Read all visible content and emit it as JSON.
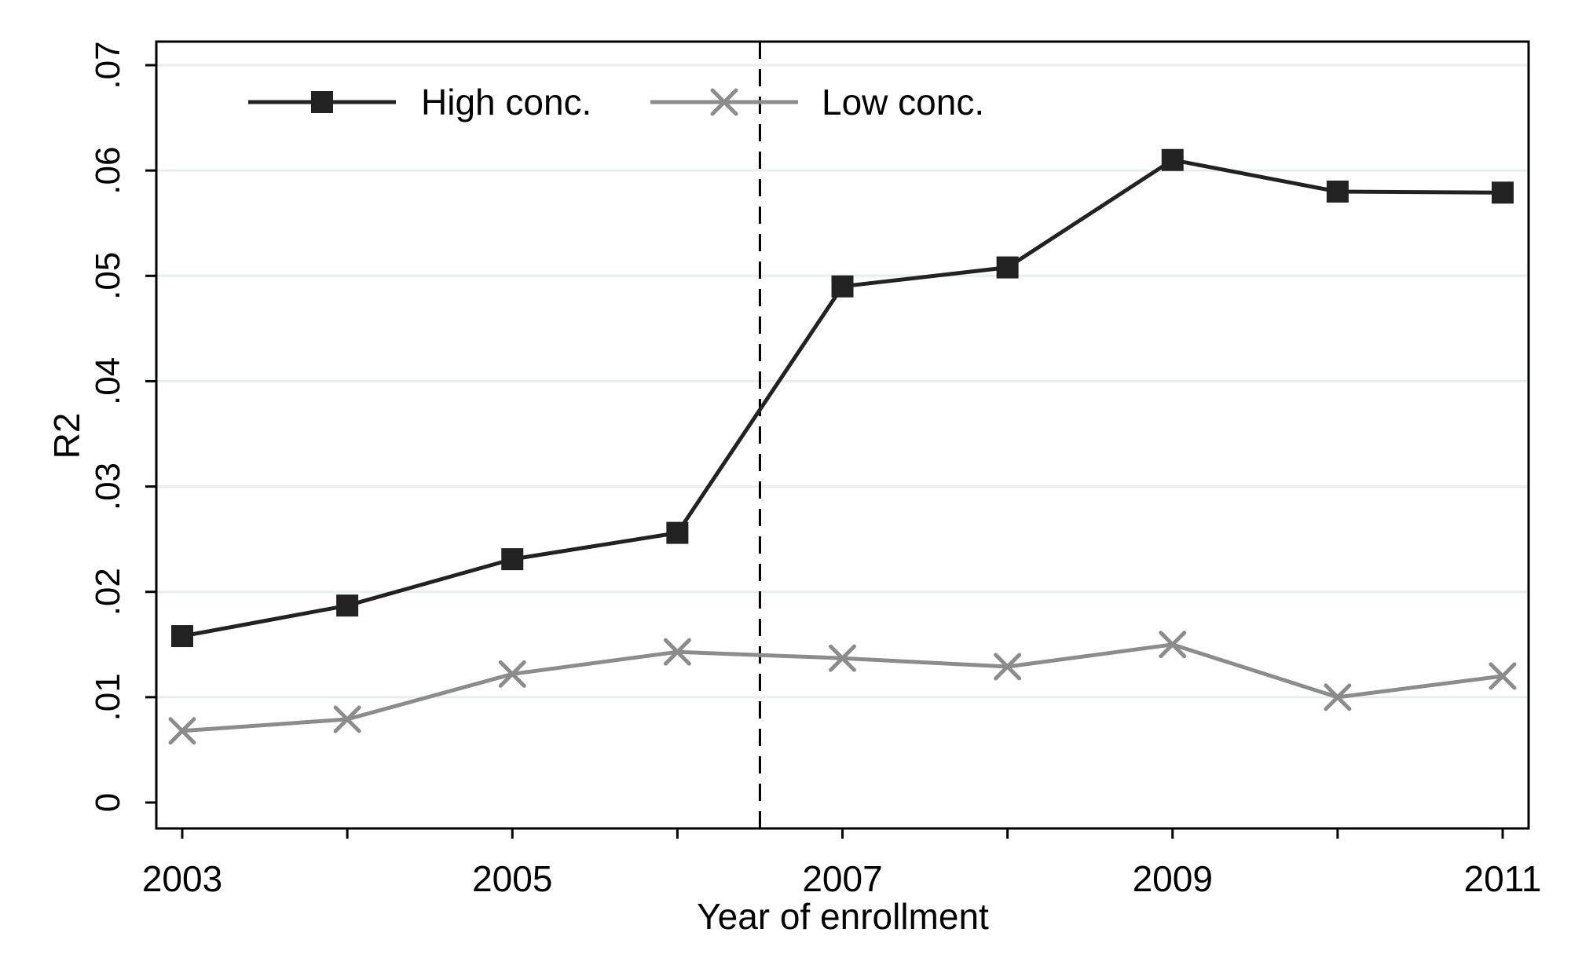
{
  "chart_data": {
    "type": "line",
    "title": "",
    "xlabel": "Year of enrollment",
    "ylabel": "R2",
    "xlim": [
      2003,
      2011
    ],
    "ylim": [
      0,
      0.07
    ],
    "x_ticks": [
      2003,
      2005,
      2007,
      2009,
      2011
    ],
    "x_tick_labels": [
      "2003",
      "2005",
      "2007",
      "2009",
      "2011"
    ],
    "y_ticks": [
      0,
      0.01,
      0.02,
      0.03,
      0.04,
      0.05,
      0.06,
      0.07
    ],
    "y_tick_labels": [
      "0",
      ".01",
      ".02",
      ".03",
      ".04",
      ".05",
      ".06",
      ".07"
    ],
    "x": [
      2003,
      2004,
      2005,
      2006,
      2007,
      2008,
      2009,
      2010,
      2011
    ],
    "series": [
      {
        "name": "High conc.",
        "marker": "square",
        "color": "#222222",
        "values": [
          0.0158,
          0.0187,
          0.0231,
          0.0256,
          0.049,
          0.0508,
          0.061,
          0.058,
          0.0579
        ]
      },
      {
        "name": "Low conc.",
        "marker": "x",
        "color": "#8c8c8c",
        "values": [
          0.0068,
          0.0079,
          0.0122,
          0.0143,
          0.0137,
          0.0129,
          0.015,
          0.01,
          0.012
        ]
      }
    ],
    "reference_line": {
      "orientation": "vertical",
      "x": 2006.5,
      "style": "dashed"
    },
    "grid": {
      "horizontal": true,
      "vertical": false
    },
    "legend": {
      "position": "top",
      "orientation": "horizontal"
    }
  }
}
